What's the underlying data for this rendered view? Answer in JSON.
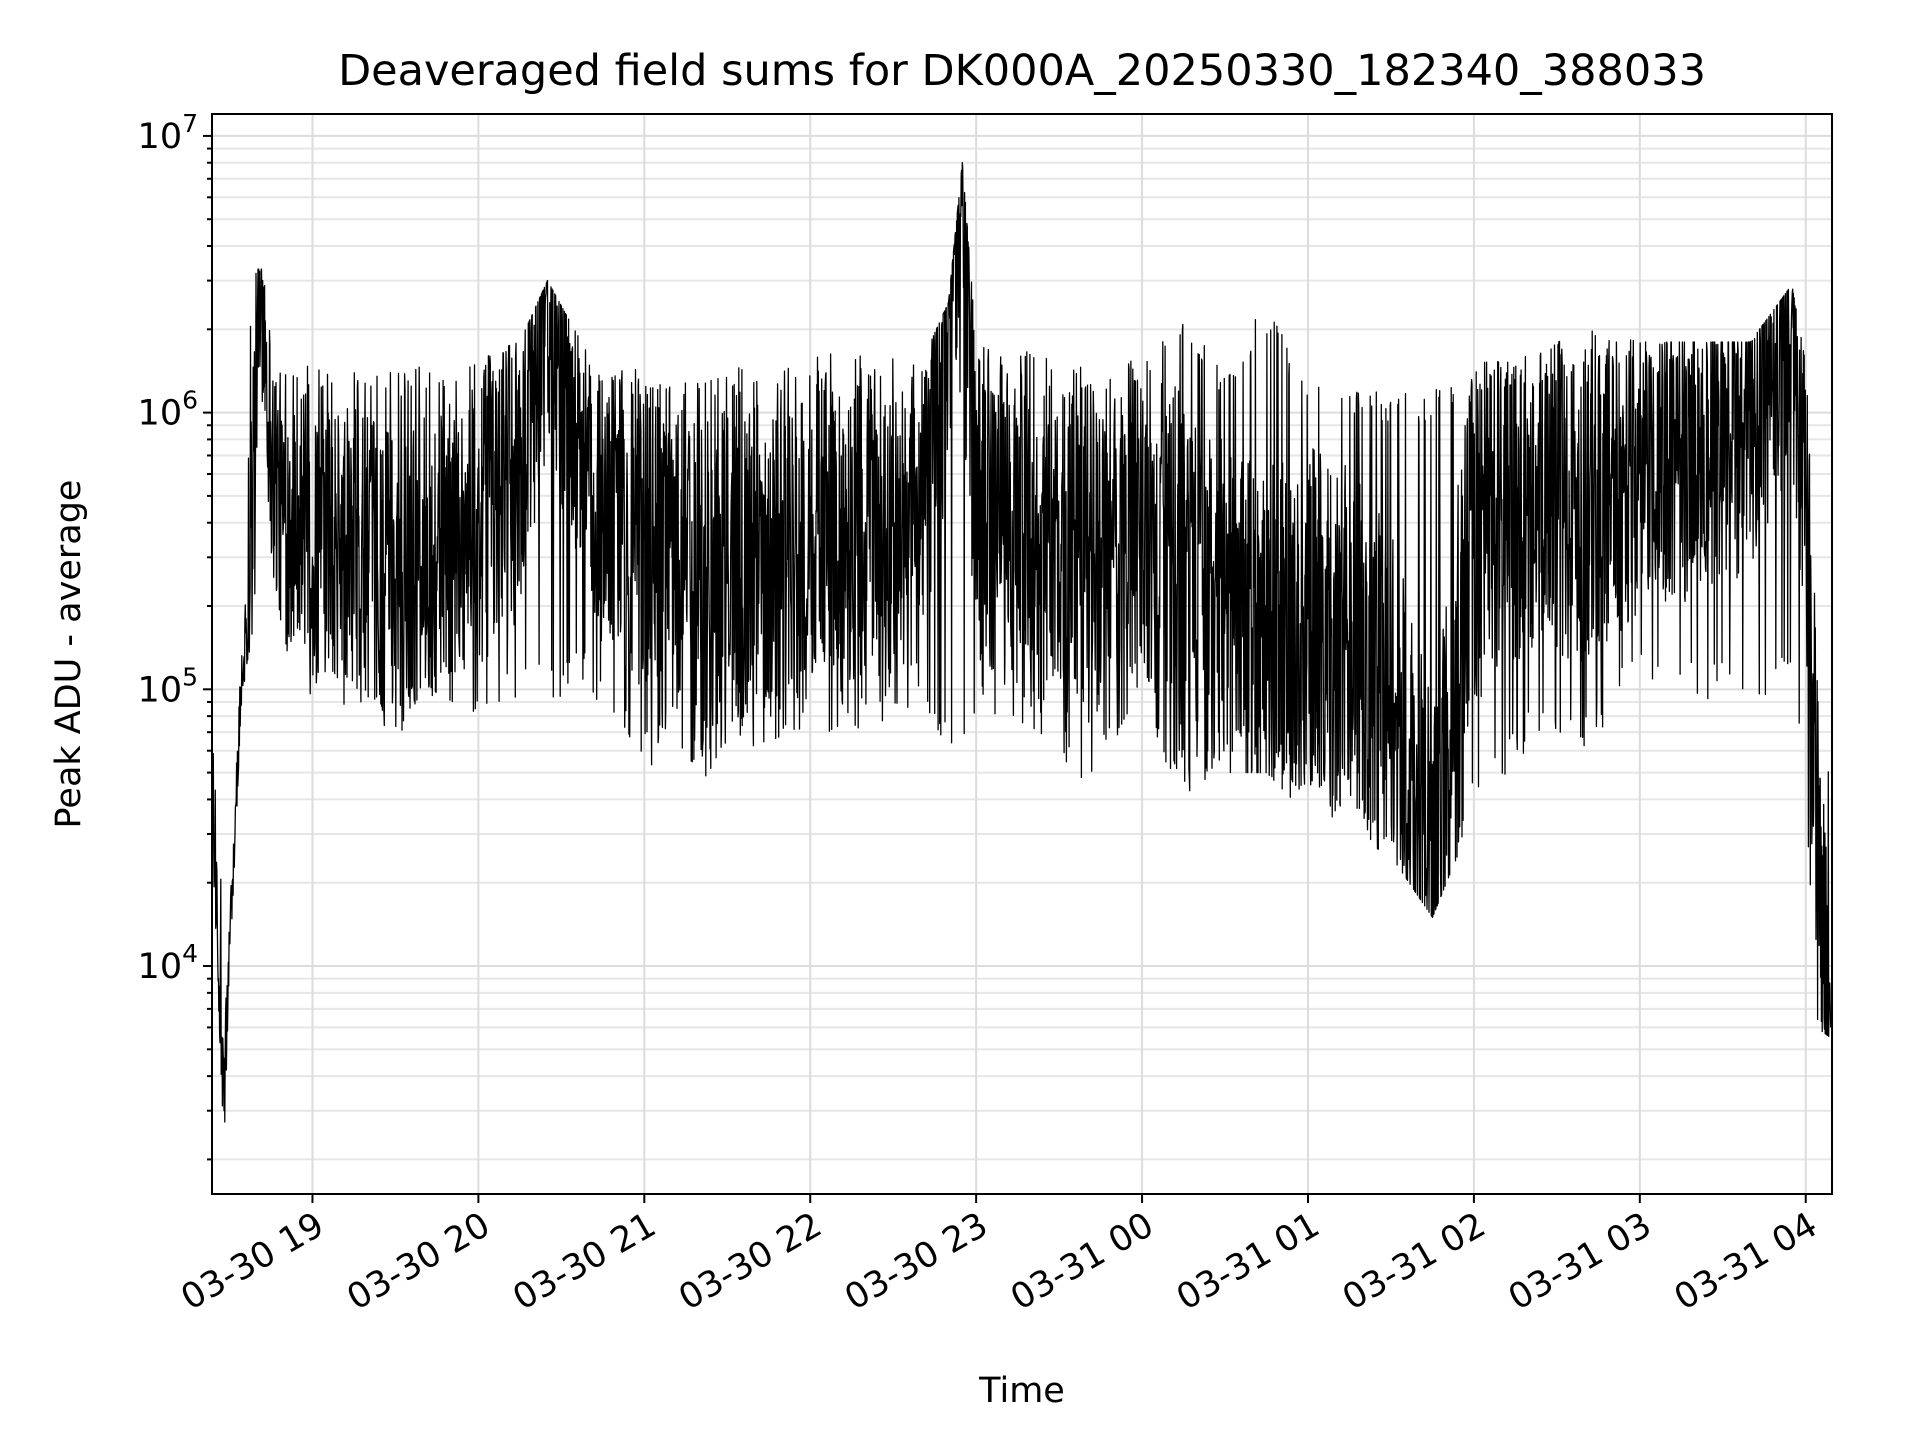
{
  "chart_data": {
    "type": "line",
    "title": "Deaveraged field sums for DK000A_20250330_182340_388033",
    "xlabel": "Time",
    "ylabel": "Peak ADU - average",
    "yscale": "log",
    "ylim": [
      1500,
      12000000
    ],
    "xlim": [
      "2025-03-30 18:23:40",
      "2025-03-31 04:09:30"
    ],
    "grid": true,
    "line_color": "#000000",
    "x_ticks": [
      {
        "time": "2025-03-30 19:00",
        "label": "03-30 19"
      },
      {
        "time": "2025-03-30 20:00",
        "label": "03-30 20"
      },
      {
        "time": "2025-03-30 21:00",
        "label": "03-30 21"
      },
      {
        "time": "2025-03-30 22:00",
        "label": "03-30 22"
      },
      {
        "time": "2025-03-30 23:00",
        "label": "03-30 23"
      },
      {
        "time": "2025-03-31 00:00",
        "label": "03-31 00"
      },
      {
        "time": "2025-03-31 01:00",
        "label": "03-31 01"
      },
      {
        "time": "2025-03-31 02:00",
        "label": "03-31 02"
      },
      {
        "time": "2025-03-31 03:00",
        "label": "03-31 03"
      },
      {
        "time": "2025-03-31 04:00",
        "label": "03-31 04"
      }
    ],
    "y_ticks": [
      {
        "value": 10000,
        "base": "10",
        "exp": "4"
      },
      {
        "value": 100000,
        "base": "10",
        "exp": "5"
      },
      {
        "value": 1000000,
        "base": "10",
        "exp": "6"
      },
      {
        "value": 10000000,
        "base": "10",
        "exp": "7"
      }
    ],
    "x": [
      "2025-03-30 18:24",
      "2025-03-30 18:26",
      "2025-03-30 18:28",
      "2025-03-30 18:30",
      "2025-03-30 18:32",
      "2025-03-30 18:34",
      "2025-03-30 18:36",
      "2025-03-30 18:38",
      "2025-03-30 18:40",
      "2025-03-30 18:42",
      "2025-03-30 18:45",
      "2025-03-30 18:50",
      "2025-03-30 18:55",
      "2025-03-30 19:00",
      "2025-03-30 19:10",
      "2025-03-30 19:20",
      "2025-03-30 19:30",
      "2025-03-30 19:40",
      "2025-03-30 19:50",
      "2025-03-30 20:00",
      "2025-03-30 20:15",
      "2025-03-30 20:25",
      "2025-03-30 20:40",
      "2025-03-30 21:00",
      "2025-03-30 21:10",
      "2025-03-30 21:20",
      "2025-03-30 21:40",
      "2025-03-30 22:00",
      "2025-03-30 22:20",
      "2025-03-30 22:40",
      "2025-03-30 22:50",
      "2025-03-30 22:55",
      "2025-03-30 23:00",
      "2025-03-30 23:20",
      "2025-03-30 23:40",
      "2025-03-31 00:00",
      "2025-03-31 00:15",
      "2025-03-31 00:30",
      "2025-03-31 00:45",
      "2025-03-31 01:00",
      "2025-03-31 01:15",
      "2025-03-31 01:30",
      "2025-03-31 01:45",
      "2025-03-31 02:00",
      "2025-03-31 02:20",
      "2025-03-31 02:40",
      "2025-03-31 03:00",
      "2025-03-31 03:20",
      "2025-03-31 03:40",
      "2025-03-31 03:55",
      "2025-03-31 04:00",
      "2025-03-31 04:04",
      "2025-03-31 04:09"
    ],
    "values": [
      30000,
      9000,
      3000,
      12000,
      30000,
      90000,
      180000,
      600000,
      1500000,
      3000000,
      700000,
      400000,
      500000,
      300000,
      350000,
      300000,
      250000,
      300000,
      350000,
      400000,
      600000,
      3000000,
      500000,
      350000,
      300000,
      250000,
      300000,
      350000,
      400000,
      350000,
      2500000,
      8000000,
      400000,
      350000,
      300000,
      400000,
      250000,
      200000,
      150000,
      180000,
      150000,
      100000,
      15000,
      400000,
      500000,
      500000,
      600000,
      700000,
      800000,
      2500000,
      600000,
      30000,
      6000
    ],
    "min_values": [
      25000,
      7500,
      2200,
      10000,
      25000,
      80000,
      120000,
      150000,
      200000,
      300000,
      150000,
      100000,
      90000,
      90000,
      85000,
      80000,
      60000,
      80000,
      90000,
      75000,
      90000,
      90000,
      100000,
      50000,
      60000,
      47000,
      60000,
      70000,
      70000,
      80000,
      60000,
      50000,
      80000,
      70000,
      43000,
      80000,
      40000,
      50000,
      50000,
      35000,
      30000,
      25000,
      15000,
      35000,
      60000,
      60000,
      100000,
      90000,
      90000,
      100000,
      40000,
      6000,
      5500
    ],
    "max_values": [
      60000,
      45000,
      12000,
      18000,
      60000,
      180000,
      1000000,
      2800000,
      3300000,
      3300000,
      1800000,
      1600000,
      1500000,
      1500000,
      1500000,
      1500000,
      1400000,
      1500000,
      1500000,
      1600000,
      1800000,
      3000000,
      1600000,
      1500000,
      1500000,
      1500000,
      1500000,
      1600000,
      1700000,
      1500000,
      2500000,
      8000000,
      1800000,
      1700000,
      1600000,
      1700000,
      2100000,
      1500000,
      2500000,
      1300000,
      1200000,
      1200000,
      1200000,
      1500000,
      1600000,
      2000000,
      1800000,
      1800000,
      1800000,
      2900000,
      1500000,
      220000,
      45000
    ]
  }
}
